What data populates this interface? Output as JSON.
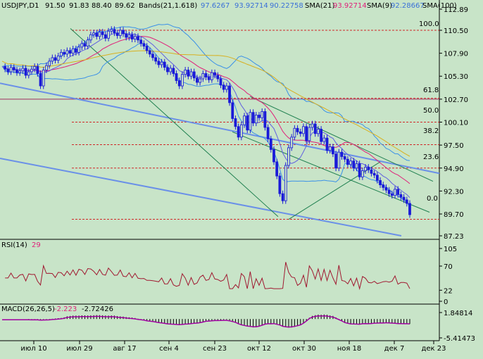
{
  "window": {
    "background": "#c8e4c8",
    "accent_price": "#1a1ad8",
    "accent_sma21": "#e0207a",
    "accent_sma100": "#d8b020",
    "accent_rsi": "#a01830",
    "accent_macd": "#a000a0"
  },
  "header": {
    "symbol": "USDJPY,D1",
    "ohlc": [
      "91.50",
      "91.83",
      "88.40",
      "89.62"
    ],
    "bands_label": "Bands(21,1.618)",
    "bands_values": [
      "97.6267",
      "93.92714",
      "90.22758"
    ],
    "sma21_label": "SMA(21)",
    "sma21_value": "93.92714",
    "sma9_label": "SMA(9)",
    "sma9_value": "92.28667",
    "sma100_label": "SMA(100)"
  },
  "fib": {
    "levels": [
      "100.0",
      "61.8",
      "50.0",
      "38.2",
      "23.6",
      "0.0"
    ]
  },
  "rsi": {
    "label": "RSI(14)",
    "value": "29"
  },
  "macd": {
    "label": "MACD(26,26,5)",
    "values": [
      "-2.223",
      "-2.72426"
    ]
  },
  "chart_data": [
    {
      "type": "candlestick",
      "symbol": "USDJPY",
      "timeframe": "D1",
      "y_ticks": [
        "112.89",
        "110.50",
        "107.90",
        "105.30",
        "102.70",
        "100.10",
        "97.50",
        "94.90",
        "92.30",
        "89.70",
        "87.23"
      ],
      "x_ticks": [
        "июл 10",
        "июл 29",
        "авг 17",
        "сен 4",
        "сен 23",
        "окт 12",
        "окт 30",
        "ноя 18",
        "дек 7",
        "дек 23"
      ],
      "ylim": [
        87.23,
        112.89
      ],
      "indicators": [
        "Bollinger Bands(21,1.618)",
        "SMA(21)",
        "SMA(9)",
        "SMA(100)",
        "Fibonacci retracement",
        "Channel lines"
      ],
      "last_close": 89.62,
      "close": [
        106.4,
        106.1,
        105.8,
        106.3,
        106.0,
        105.7,
        105.9,
        106.2,
        105.4,
        105.8,
        106.1,
        106.4,
        105.6,
        104.2,
        106.0,
        106.5,
        107.0,
        107.4,
        107.1,
        107.6,
        108.0,
        107.8,
        108.2,
        107.9,
        108.4,
        108.0,
        108.6,
        109.0,
        108.7,
        109.4,
        110.0,
        110.2,
        109.8,
        110.3,
        110.0,
        109.6,
        110.4,
        110.6,
        110.2,
        109.9,
        110.5,
        110.1,
        109.7,
        110.0,
        109.5,
        109.8,
        109.4,
        109.0,
        108.7,
        108.2,
        107.8,
        107.4,
        107.0,
        106.6,
        106.9,
        106.3,
        105.8,
        106.2,
        105.6,
        104.8,
        104.2,
        105.5,
        106.0,
        105.3,
        105.8,
        105.1,
        104.6,
        105.0,
        105.6,
        105.2,
        104.9,
        105.7,
        105.4,
        105.0,
        104.3,
        103.8,
        104.2,
        102.3,
        100.5,
        99.6,
        98.4,
        99.8,
        100.8,
        99.2,
        101.2,
        100.0,
        100.9,
        100.6,
        101.3,
        99.5,
        98.2,
        97.0,
        95.6,
        94.0,
        92.0,
        91.2,
        95.2,
        97.2,
        98.4,
        99.4,
        99.0,
        98.8,
        99.6,
        98.0,
        99.5,
        99.9,
        98.8,
        99.3,
        97.9,
        98.3,
        96.9,
        97.3,
        96.5,
        94.9,
        96.7,
        96.2,
        95.9,
        95.3,
        95.7,
        94.9,
        95.4,
        93.9,
        94.6,
        95.0,
        94.7,
        94.3,
        94.1,
        93.5,
        93.0,
        92.7,
        92.4,
        92.0,
        91.8,
        92.5,
        91.9,
        91.6,
        91.3,
        90.9,
        89.62
      ]
    },
    {
      "type": "line",
      "name": "RSI(14)",
      "y_ticks": [
        "105",
        "70",
        "22",
        "0"
      ],
      "ylim": [
        0,
        105
      ],
      "last_value": 29
    },
    {
      "type": "bar",
      "name": "MACD(26,26,5)",
      "y_ticks": [
        "1.84814",
        "-5.41473"
      ],
      "ylim": [
        -5.41473,
        1.84814
      ],
      "values_last": [
        -2.223,
        -2.72426
      ]
    }
  ]
}
